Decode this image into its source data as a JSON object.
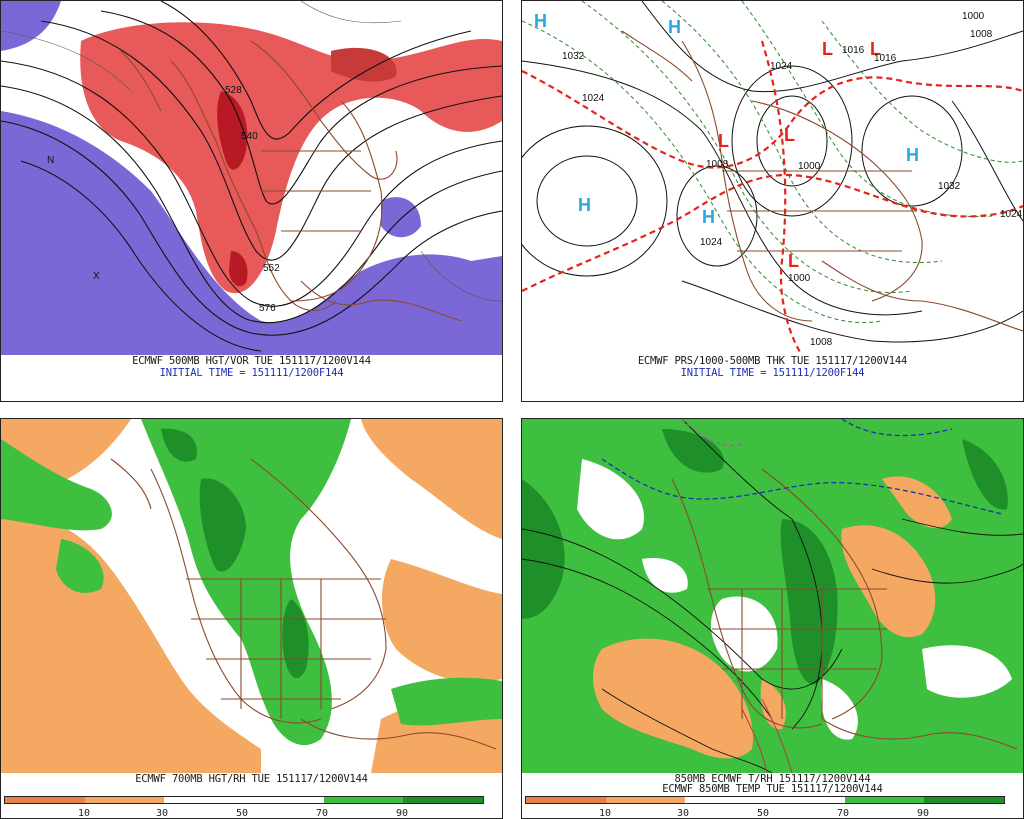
{
  "panels": [
    {
      "caption_line1": "ECMWF 500MB HGT/VOR TUE 151117/1200V144",
      "caption_line2": "INITIAL TIME = 151111/1200F144",
      "contour_labels": [
        "528",
        "540",
        "552",
        "576"
      ],
      "pressure_marks": [
        "N",
        "X"
      ]
    },
    {
      "caption_line1": "ECMWF PRS/1000-500MB THK TUE 151117/1200V144",
      "caption_line2": "INITIAL TIME = 151111/1200F144",
      "contour_labels": [
        "1032",
        "1024",
        "1024",
        "1016",
        "1016",
        "1008",
        "1008",
        "1000",
        "1000",
        "1032",
        "1008",
        "1024",
        "1024",
        "1000"
      ],
      "high_marker": "H",
      "low_marker": "L"
    },
    {
      "caption_line1": "ECMWF 700MB HGT/RH TUE 151117/1200V144",
      "colorbar_labels": [
        "10",
        "30",
        "50",
        "70",
        "90"
      ]
    },
    {
      "caption_line1": "850MB ECMWF T/RH 151117/1200V144",
      "caption_line2": "ECMWF 850MB TEMP TUE 151117/1200V144",
      "colorbar_labels": [
        "10",
        "30",
        "50",
        "70",
        "90"
      ]
    }
  ],
  "colors": {
    "rh_dry_strong": "#e8804a",
    "rh_dry": "#f4a862",
    "rh_moist": "#3fbf3f",
    "rh_wet": "#1f8f2a",
    "vort_pos": "#e8595a",
    "vort_strong": "#b81a25",
    "vort_neg": "#7b68d6",
    "borders": "#8b4a2b",
    "high": "#2aa8e0",
    "low": "#e3241b",
    "thickness": "#e3241b"
  }
}
